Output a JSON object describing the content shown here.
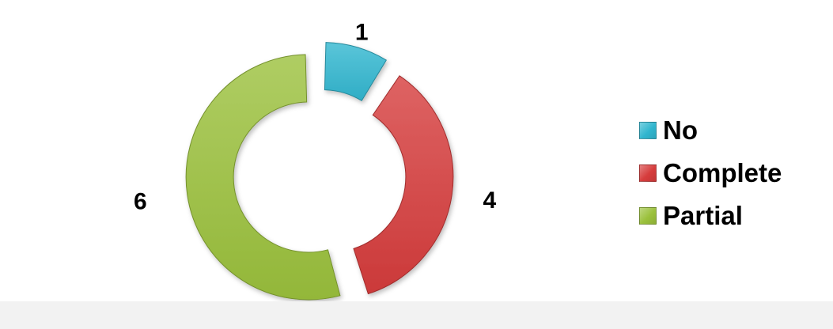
{
  "chart_data": {
    "type": "pie",
    "variant": "donut-exploded",
    "categories": [
      "No",
      "Complete",
      "Partial"
    ],
    "values": [
      1,
      4,
      6
    ],
    "data_labels": [
      "1",
      "4",
      "6"
    ],
    "colors": [
      "#31b6cf",
      "#d63c3c",
      "#9bc13c"
    ],
    "legend": "right",
    "title": ""
  }
}
